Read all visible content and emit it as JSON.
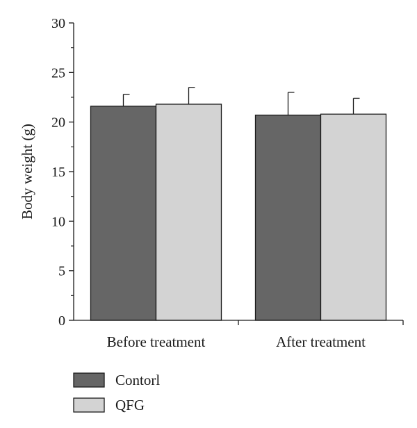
{
  "chart_data": {
    "type": "bar",
    "categories": [
      "Before treatment",
      "After treatment"
    ],
    "series": [
      {
        "name": "Contorl",
        "values": [
          21.6,
          20.7
        ],
        "errors": [
          1.2,
          2.3
        ],
        "color": "#666666"
      },
      {
        "name": "QFG",
        "values": [
          21.8,
          20.8
        ],
        "errors": [
          1.7,
          1.6
        ],
        "color": "#d3d3d3"
      }
    ],
    "xlabel": "",
    "ylabel": "Body weight (g)",
    "ylim": [
      0,
      30
    ],
    "yticks": [
      0,
      5,
      10,
      15,
      20,
      25,
      30
    ],
    "grid": false,
    "legend": "bottom-left"
  }
}
